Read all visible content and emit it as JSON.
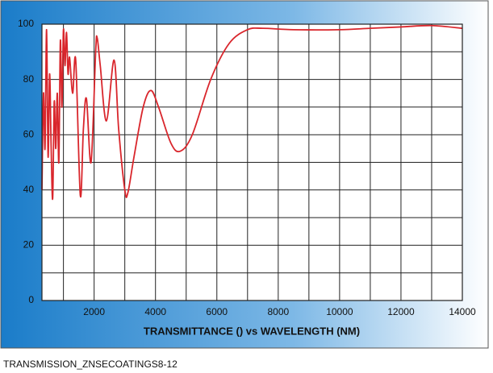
{
  "chart_data": {
    "type": "line",
    "title": "TRANSMITTANCE () vs WAVELENGTH (NM)",
    "caption": "TRANSMISSION_ZNSECOATINGS8-12",
    "x": [
      300,
      350,
      400,
      450,
      500,
      550,
      600,
      650,
      700,
      750,
      800,
      850,
      900,
      950,
      1000,
      1050,
      1100,
      1150,
      1200,
      1300,
      1400,
      1550,
      1650,
      1750,
      1900,
      2050,
      2100,
      2200,
      2400,
      2650,
      2800,
      3000,
      3100,
      3300,
      3600,
      3850,
      4100,
      4500,
      4800,
      5200,
      5800,
      6400,
      7000,
      7500,
      8500,
      10000,
      11000,
      12000,
      13000,
      14000
    ],
    "series": [
      {
        "color": "#d9262c",
        "values": [
          40,
          75,
          55,
          98,
          52,
          82,
          55,
          37,
          72,
          55,
          75,
          50,
          94,
          70,
          98,
          85,
          97,
          82,
          88,
          75,
          87,
          38,
          62,
          73,
          50,
          90,
          95,
          85,
          65,
          87,
          62,
          40,
          39,
          52,
          70,
          76,
          70,
          57,
          54,
          60,
          80,
          93,
          98,
          98.5,
          98,
          98,
          98.5,
          99,
          99.5,
          98.5
        ]
      }
    ],
    "xlim": [
      300,
      14000
    ],
    "ylim": [
      0,
      100
    ],
    "xticks": [
      2000,
      4000,
      6000,
      8000,
      10000,
      12000,
      14000
    ],
    "yticks": [
      0,
      20,
      40,
      60,
      80,
      100
    ],
    "x_minor_grid": [
      1000,
      3000,
      5000,
      7000,
      9000,
      11000,
      13000
    ],
    "y_minor_grid": [
      10,
      30,
      50,
      70,
      90
    ],
    "grid": true
  }
}
